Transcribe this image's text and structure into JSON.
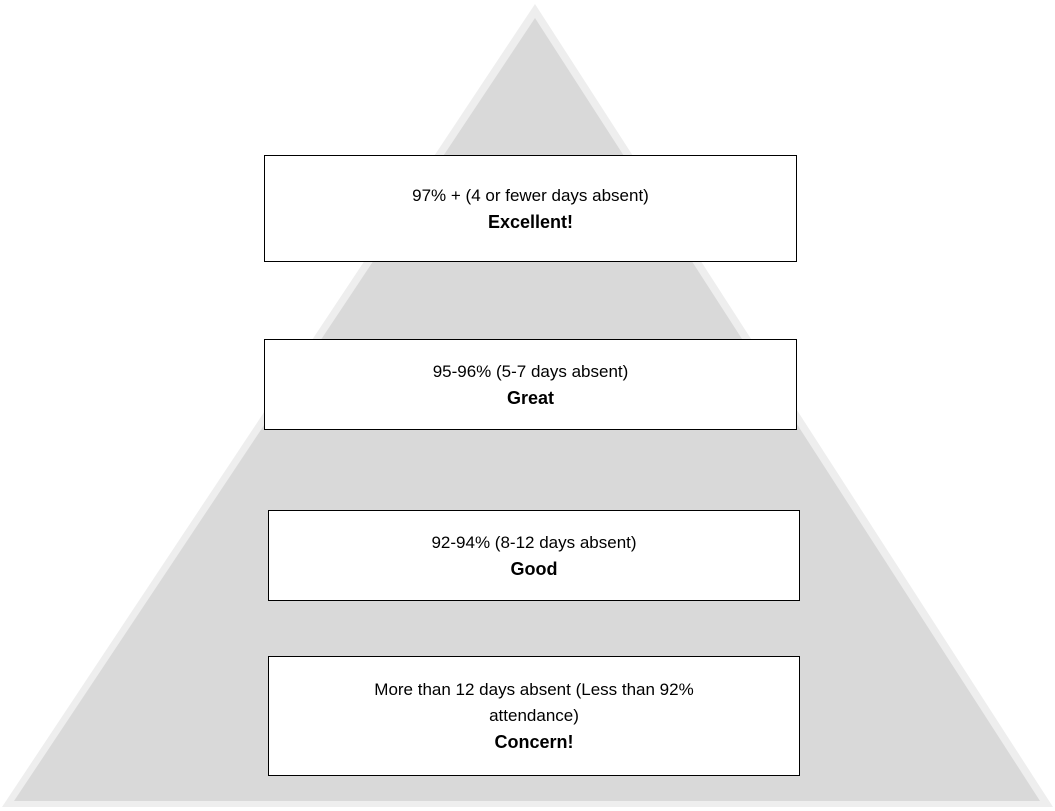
{
  "colors": {
    "pyramid_fill": "#d9d9d9",
    "pyramid_outline": "#eeeeee",
    "box_fill": "#ffffff",
    "box_border": "#000000"
  },
  "tiers": [
    {
      "range": "97% + (4 or fewer days absent)",
      "rating": "Excellent!"
    },
    {
      "range": "95-96% (5-7 days absent)",
      "rating": "Great"
    },
    {
      "range": "92-94% (8-12 days absent)",
      "rating": "Good"
    },
    {
      "range": "More than 12 days absent (Less than 92% attendance)",
      "rating": "Concern!"
    }
  ]
}
